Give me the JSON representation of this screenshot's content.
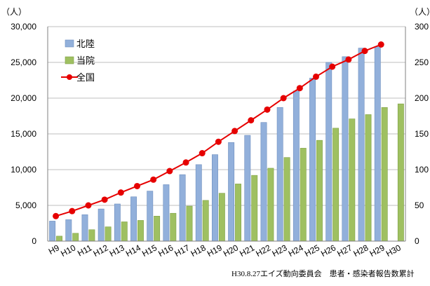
{
  "chart_data": {
    "type": "bar",
    "left_axis_unit": "（人）",
    "right_axis_unit": "（人）",
    "categories": [
      "H9",
      "H10",
      "H11",
      "H12",
      "H13",
      "H14",
      "H15",
      "H16",
      "H17",
      "H18",
      "H19",
      "H20",
      "H21",
      "H22",
      "H23",
      "H24",
      "H25",
      "H26",
      "H27",
      "H28",
      "H29",
      "H30"
    ],
    "ylim": [
      0,
      30000
    ],
    "yticks": [
      0,
      5000,
      10000,
      15000,
      20000,
      25000,
      30000
    ],
    "ytick_labels": [
      "0",
      "5,000",
      "10,000",
      "15,000",
      "20,000",
      "25,000",
      "30,000"
    ],
    "right_ytick_labels": [
      "0",
      "50",
      "100",
      "150",
      "200",
      "250",
      "300"
    ],
    "grid": true,
    "legend_position": "top-left",
    "series": [
      {
        "name": "北陸",
        "type": "bar",
        "color": "#92b0db",
        "values": [
          2800,
          3000,
          3700,
          4500,
          5200,
          6200,
          7000,
          7900,
          9300,
          10700,
          12100,
          13800,
          14800,
          16600,
          18700,
          21000,
          22800,
          25000,
          25800,
          27000,
          27200,
          null
        ]
      },
      {
        "name": "当院",
        "type": "bar",
        "color": "#9fc061",
        "values": [
          700,
          1100,
          1600,
          2000,
          2700,
          2900,
          3500,
          3900,
          4900,
          5700,
          6700,
          8000,
          9200,
          10200,
          11700,
          13000,
          14100,
          15800,
          17100,
          17700,
          18700,
          19200
        ]
      },
      {
        "name": "全国",
        "type": "line",
        "color": "#e60000",
        "values": [
          3500,
          4200,
          5000,
          5800,
          6800,
          7700,
          8600,
          9800,
          11000,
          12300,
          13900,
          15400,
          16900,
          18400,
          20000,
          21400,
          23000,
          24400,
          25400,
          26600,
          27500,
          null
        ]
      }
    ],
    "source": "H30.8.27エイズ動向委員会　患者・感染者報告数累計"
  }
}
